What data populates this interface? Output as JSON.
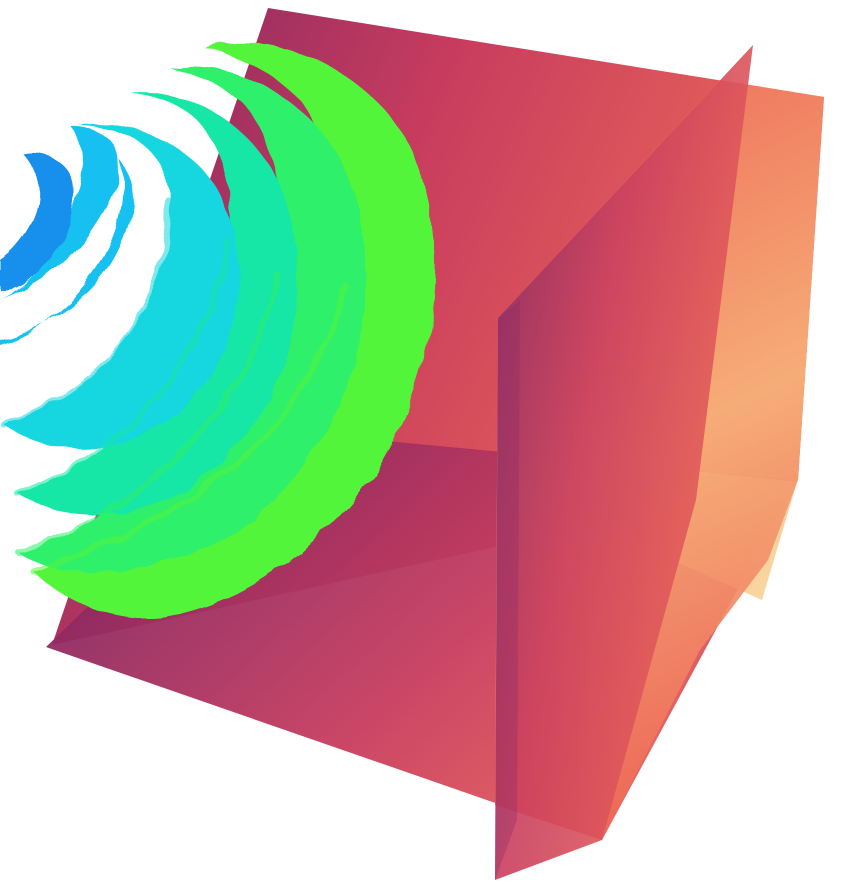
{
  "scene": {
    "background": "#ffffff",
    "slice_colors": {
      "dark": "#7d2463",
      "mid": "#c93d5e",
      "warm": "#ee6a57",
      "light": "#f7b27a",
      "pale": "#f9d79a"
    },
    "isosurface_colors": [
      "#1590ec",
      "#12c0f0",
      "#12d6e0",
      "#16e7a6",
      "#2ef06a",
      "#52f53a"
    ]
  }
}
